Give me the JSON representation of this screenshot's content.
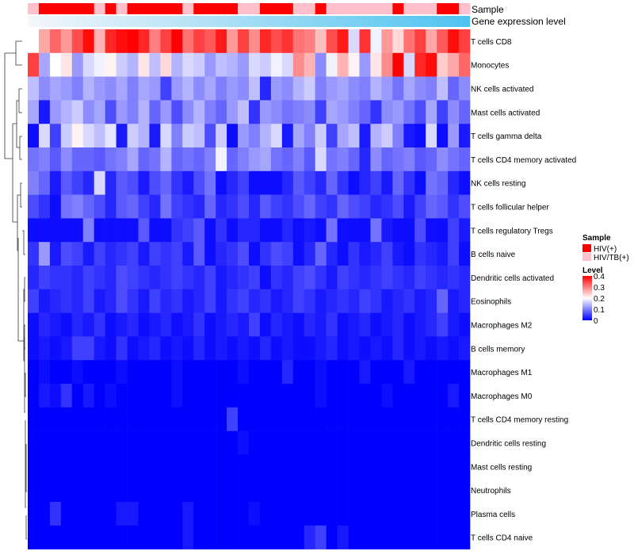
{
  "chart_data": {
    "type": "heatmap",
    "title": "",
    "row_labels": [
      "T cells CD8",
      "Monocytes",
      "NK cells activated",
      "Mast cells activated",
      "T cells gamma delta",
      "T cells CD4 memory activated",
      "NK cells resting",
      "T cells follicular helper",
      "T cells regulatory  Tregs",
      "B cells naive",
      "Dendritic cells activated",
      "Eosinophils",
      "Macrophages M2",
      "B cells memory",
      "Macrophages M1",
      "Macrophages M0",
      "T cells CD4 memory resting",
      "Dendritic cells resting",
      "Mast cells resting",
      "Neutrophils",
      "Plasma cells",
      "T cells CD4 naive"
    ],
    "n_columns": 40,
    "annotation_tracks": [
      {
        "name": "Sample",
        "values": [
          "HIV/TB(+)",
          "HIV(+)",
          "HIV(+)",
          "HIV(+)",
          "HIV(+)",
          "HIV(+)",
          "HIV/TB(+)",
          "HIV(+)",
          "HIV/TB(+)",
          "HIV(+)",
          "HIV(+)",
          "HIV(+)",
          "HIV(+)",
          "HIV(+)",
          "HIV/TB(+)",
          "HIV(+)",
          "HIV(+)",
          "HIV(+)",
          "HIV(+)",
          "HIV/TB(+)",
          "HIV/TB(+)",
          "HIV(+)",
          "HIV(+)",
          "HIV(+)",
          "HIV/TB(+)",
          "HIV/TB(+)",
          "HIV(+)",
          "HIV/TB(+)",
          "HIV/TB(+)",
          "HIV/TB(+)",
          "HIV/TB(+)",
          "HIV/TB(+)",
          "HIV/TB(+)",
          "HIV(+)",
          "HIV/TB(+)",
          "HIV/TB(+)",
          "HIV/TB(+)",
          "HIV(+)",
          "HIV(+)",
          "HIV/TB(+)"
        ]
      },
      {
        "name": "Gene expression level",
        "gradient": [
          "#f4f7fb",
          "#4ec3ef"
        ]
      }
    ],
    "legend": {
      "sample_title": "Sample",
      "sample_items": [
        {
          "label": "HIV(+)",
          "color": "#ff0000"
        },
        {
          "label": "HIV/TB(+)",
          "color": "#ffc0cb"
        }
      ],
      "level_title": "Level",
      "level_ticks": [
        "0.4",
        "0.3",
        "0.2",
        "0.1",
        "0"
      ],
      "level_range": [
        0,
        0.4
      ],
      "level_colors": [
        "#0000ff",
        "#ffffff",
        "#ff0000"
      ],
      "placement": "right"
    },
    "values": [
      [
        0.2,
        0.27,
        0.32,
        0.28,
        0.34,
        0.39,
        0.26,
        0.37,
        0.39,
        0.4,
        0.37,
        0.3,
        0.35,
        0.4,
        0.31,
        0.35,
        0.33,
        0.38,
        0.28,
        0.35,
        0.29,
        0.37,
        0.34,
        0.36,
        0.31,
        0.3,
        0.25,
        0.34,
        0.38,
        0.17,
        0.36,
        0.19,
        0.28,
        0.23,
        0.31,
        0.35,
        0.27,
        0.33,
        0.39,
        0.35
      ],
      [
        0.35,
        0.13,
        0.2,
        0.22,
        0.12,
        0.17,
        0.19,
        0.21,
        0.16,
        0.14,
        0.22,
        0.15,
        0.23,
        0.14,
        0.17,
        0.16,
        0.12,
        0.15,
        0.14,
        0.12,
        0.17,
        0.16,
        0.19,
        0.17,
        0.29,
        0.26,
        0.11,
        0.19,
        0.26,
        0.21,
        0.12,
        0.22,
        0.29,
        0.4,
        0.17,
        0.37,
        0.39,
        0.24,
        0.27,
        0.32
      ],
      [
        0.15,
        0.11,
        0.13,
        0.12,
        0.1,
        0.14,
        0.12,
        0.11,
        0.13,
        0.1,
        0.13,
        0.12,
        0.05,
        0.12,
        0.14,
        0.11,
        0.13,
        0.1,
        0.12,
        0.11,
        0.15,
        0.03,
        0.12,
        0.11,
        0.14,
        0.16,
        0.1,
        0.12,
        0.13,
        0.11,
        0.1,
        0.14,
        0.12,
        0.09,
        0.13,
        0.11,
        0.1,
        0.15,
        0.08,
        0.11
      ],
      [
        0.13,
        0.02,
        0.12,
        0.14,
        0.16,
        0.11,
        0.13,
        0.06,
        0.12,
        0.1,
        0.14,
        0.08,
        0.12,
        0.06,
        0.11,
        0.14,
        0.1,
        0.08,
        0.12,
        0.15,
        0.04,
        0.12,
        0.11,
        0.09,
        0.1,
        0.11,
        0.05,
        0.13,
        0.12,
        0.1,
        0.08,
        0.04,
        0.11,
        0.12,
        0.09,
        0.06,
        0.13,
        0.05,
        0.11,
        0.08
      ],
      [
        0.01,
        0.17,
        0.05,
        0.16,
        0.21,
        0.17,
        0.15,
        0.18,
        0.02,
        0.16,
        0.14,
        0.02,
        0.17,
        0.1,
        0.16,
        0.15,
        0.06,
        0.16,
        0.01,
        0.12,
        0.1,
        0.14,
        0.17,
        0.02,
        0.13,
        0.1,
        0.16,
        0.05,
        0.13,
        0.15,
        0.02,
        0.14,
        0.16,
        0.1,
        0.02,
        0.01,
        0.17,
        0.01,
        0.12,
        0.02
      ],
      [
        0.09,
        0.1,
        0.07,
        0.11,
        0.08,
        0.08,
        0.07,
        0.09,
        0.1,
        0.13,
        0.08,
        0.09,
        0.14,
        0.08,
        0.09,
        0.08,
        0.1,
        0.19,
        0.08,
        0.1,
        0.12,
        0.13,
        0.09,
        0.08,
        0.1,
        0.07,
        0.17,
        0.09,
        0.1,
        0.08,
        0.03,
        0.11,
        0.08,
        0.09,
        0.1,
        0.07,
        0.08,
        0.11,
        0.09,
        0.08
      ],
      [
        0.1,
        0.08,
        0.02,
        0.07,
        0.05,
        0.03,
        0.17,
        0.03,
        0.07,
        0.06,
        0.02,
        0.06,
        0.08,
        0.04,
        0.02,
        0.06,
        0.09,
        0.01,
        0.03,
        0.05,
        0.01,
        0.01,
        0.01,
        0.03,
        0.07,
        0.05,
        0.03,
        0.08,
        0.04,
        0.01,
        0.03,
        0.05,
        0.02,
        0.08,
        0.04,
        0.01,
        0.09,
        0.08,
        0.03,
        0.01
      ],
      [
        0.06,
        0.04,
        0.01,
        0.09,
        0.1,
        0.08,
        0.06,
        0.03,
        0.07,
        0.08,
        0.05,
        0.03,
        0.09,
        0.05,
        0.04,
        0.03,
        0.08,
        0.03,
        0.04,
        0.06,
        0.03,
        0.07,
        0.05,
        0.04,
        0.06,
        0.08,
        0.05,
        0.04,
        0.08,
        0.06,
        0.05,
        0.03,
        0.04,
        0.06,
        0.02,
        0.05,
        0.08,
        0.07,
        0.04,
        0.06
      ],
      [
        0.01,
        0.01,
        0.01,
        0.01,
        0.01,
        0.1,
        0.01,
        0.01,
        0.01,
        0.01,
        0.07,
        0.01,
        0.01,
        0.04,
        0.05,
        0.07,
        0.01,
        0.04,
        0.01,
        0.03,
        0.03,
        0.01,
        0.01,
        0.03,
        0.01,
        0.02,
        0.01,
        0.09,
        0.01,
        0.01,
        0.01,
        0.09,
        0.02,
        0.01,
        0.01,
        0.06,
        0.01,
        0.01,
        0.05,
        0.02
      ],
      [
        0.04,
        0.12,
        0.02,
        0.06,
        0.05,
        0.02,
        0.05,
        0.03,
        0.04,
        0.05,
        0.02,
        0.05,
        0.04,
        0.05,
        0.02,
        0.07,
        0.01,
        0.03,
        0.04,
        0.06,
        0.01,
        0.04,
        0.06,
        0.05,
        0.01,
        0.03,
        0.08,
        0.03,
        0.01,
        0.04,
        0.02,
        0.03,
        0.05,
        0.02,
        0.01,
        0.04,
        0.03,
        0.02,
        0.05,
        0.01
      ],
      [
        0.03,
        0.05,
        0.04,
        0.04,
        0.03,
        0.05,
        0.04,
        0.03,
        0.06,
        0.05,
        0.04,
        0.03,
        0.04,
        0.05,
        0.04,
        0.03,
        0.05,
        0.02,
        0.03,
        0.04,
        0.05,
        0.01,
        0.04,
        0.03,
        0.05,
        0.06,
        0.04,
        0.02,
        0.05,
        0.04,
        0.03,
        0.04,
        0.05,
        0.04,
        0.03,
        0.05,
        0.04,
        0.03,
        0.04,
        0.03
      ],
      [
        0.05,
        0.02,
        0.03,
        0.04,
        0.03,
        0.05,
        0.02,
        0.03,
        0.06,
        0.04,
        0.02,
        0.05,
        0.03,
        0.04,
        0.02,
        0.03,
        0.05,
        0.02,
        0.04,
        0.05,
        0.03,
        0.04,
        0.02,
        0.03,
        0.05,
        0.04,
        0.02,
        0.03,
        0.04,
        0.03,
        0.05,
        0.04,
        0.02,
        0.03,
        0.04,
        0.02,
        0.03,
        0.08,
        0.02,
        0.03
      ],
      [
        0.01,
        0.03,
        0.02,
        0.01,
        0.03,
        0.02,
        0.04,
        0.01,
        0.02,
        0.03,
        0.01,
        0.02,
        0.03,
        0.01,
        0.02,
        0.04,
        0.01,
        0.02,
        0.03,
        0.02,
        0.05,
        0.01,
        0.03,
        0.02,
        0.01,
        0.03,
        0.02,
        0.04,
        0.01,
        0.02,
        0.03,
        0.01,
        0.02,
        0.03,
        0.01,
        0.02,
        0.03,
        0.05,
        0.02,
        0.01
      ],
      [
        0.01,
        0.02,
        0.01,
        0.02,
        0.05,
        0.05,
        0.02,
        0.01,
        0.04,
        0.01,
        0.02,
        0.03,
        0.01,
        0.02,
        0.01,
        0.03,
        0.01,
        0.02,
        0.01,
        0.02,
        0.01,
        0.03,
        0.01,
        0.02,
        0.01,
        0.01,
        0.02,
        0.03,
        0.01,
        0.02,
        0.01,
        0.02,
        0.01,
        0.03,
        0.01,
        0.02,
        0.01,
        0.02,
        0.01,
        0.02
      ],
      [
        0.0,
        0.01,
        0.0,
        0.0,
        0.01,
        0.0,
        0.0,
        0.0,
        0.01,
        0.0,
        0.0,
        0.0,
        0.0,
        0.01,
        0.0,
        0.0,
        0.0,
        0.0,
        0.0,
        0.01,
        0.0,
        0.0,
        0.0,
        0.03,
        0.0,
        0.0,
        0.01,
        0.0,
        0.0,
        0.0,
        0.02,
        0.0,
        0.0,
        0.0,
        0.02,
        0.0,
        0.0,
        0.0,
        0.0,
        0.0
      ],
      [
        0.0,
        0.02,
        0.01,
        0.04,
        0.0,
        0.02,
        0.0,
        0.01,
        0.0,
        0.0,
        0.0,
        0.0,
        0.0,
        0.01,
        0.0,
        0.0,
        0.0,
        0.0,
        0.0,
        0.0,
        0.0,
        0.0,
        0.0,
        0.0,
        0.0,
        0.0,
        0.01,
        0.0,
        0.0,
        0.0,
        0.0,
        0.0,
        0.01,
        0.0,
        0.0,
        0.0,
        0.0,
        0.0,
        0.02,
        0.0
      ],
      [
        0.0,
        0.0,
        0.0,
        0.0,
        0.0,
        0.0,
        0.0,
        0.0,
        0.0,
        0.0,
        0.0,
        0.0,
        0.0,
        0.0,
        0.0,
        0.0,
        0.0,
        0.0,
        0.05,
        0.0,
        0.0,
        0.0,
        0.0,
        0.0,
        0.0,
        0.0,
        0.0,
        0.0,
        0.0,
        0.0,
        0.0,
        0.0,
        0.0,
        0.0,
        0.0,
        0.0,
        0.0,
        0.0,
        0.0,
        0.0
      ],
      [
        0.0,
        0.0,
        0.0,
        0.0,
        0.0,
        0.0,
        0.0,
        0.0,
        0.0,
        0.0,
        0.0,
        0.0,
        0.0,
        0.0,
        0.0,
        0.0,
        0.0,
        0.0,
        0.0,
        0.01,
        0.0,
        0.0,
        0.0,
        0.0,
        0.0,
        0.0,
        0.0,
        0.0,
        0.0,
        0.0,
        0.0,
        0.0,
        0.0,
        0.0,
        0.0,
        0.0,
        0.0,
        0.0,
        0.0,
        0.0
      ],
      [
        0.0,
        0.0,
        0.0,
        0.0,
        0.0,
        0.0,
        0.0,
        0.0,
        0.0,
        0.0,
        0.0,
        0.0,
        0.0,
        0.0,
        0.0,
        0.0,
        0.0,
        0.0,
        0.0,
        0.0,
        0.0,
        0.0,
        0.0,
        0.0,
        0.0,
        0.0,
        0.0,
        0.0,
        0.0,
        0.0,
        0.0,
        0.0,
        0.0,
        0.0,
        0.0,
        0.0,
        0.0,
        0.0,
        0.0,
        0.0
      ],
      [
        0.0,
        0.0,
        0.0,
        0.0,
        0.0,
        0.0,
        0.0,
        0.0,
        0.0,
        0.0,
        0.0,
        0.0,
        0.0,
        0.0,
        0.0,
        0.0,
        0.0,
        0.0,
        0.0,
        0.0,
        0.0,
        0.0,
        0.0,
        0.0,
        0.0,
        0.0,
        0.0,
        0.0,
        0.0,
        0.0,
        0.0,
        0.0,
        0.0,
        0.0,
        0.0,
        0.0,
        0.0,
        0.0,
        0.0,
        0.0
      ],
      [
        0.0,
        0.0,
        0.04,
        0.0,
        0.0,
        0.0,
        0.0,
        0.0,
        0.02,
        0.02,
        0.0,
        0.0,
        0.0,
        0.0,
        0.02,
        0.0,
        0.0,
        0.0,
        0.0,
        0.0,
        0.01,
        0.0,
        0.0,
        0.0,
        0.0,
        0.0,
        0.0,
        0.0,
        0.0,
        0.0,
        0.0,
        0.0,
        0.0,
        0.0,
        0.0,
        0.0,
        0.0,
        0.0,
        0.0,
        0.0
      ],
      [
        0.0,
        0.0,
        0.0,
        0.0,
        0.0,
        0.0,
        0.0,
        0.0,
        0.0,
        0.0,
        0.0,
        0.0,
        0.0,
        0.0,
        0.02,
        0.0,
        0.0,
        0.0,
        0.0,
        0.0,
        0.0,
        0.0,
        0.0,
        0.0,
        0.0,
        0.03,
        0.05,
        0.0,
        0.02,
        0.0,
        0.0,
        0.0,
        0.0,
        0.0,
        0.0,
        0.0,
        0.0,
        0.0,
        0.0,
        0.0
      ]
    ]
  }
}
